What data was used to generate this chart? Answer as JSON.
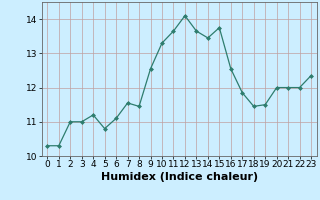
{
  "x": [
    0,
    1,
    2,
    3,
    4,
    5,
    6,
    7,
    8,
    9,
    10,
    11,
    12,
    13,
    14,
    15,
    16,
    17,
    18,
    19,
    20,
    21,
    22,
    23
  ],
  "y": [
    10.3,
    10.3,
    11.0,
    11.0,
    11.2,
    10.8,
    11.1,
    11.55,
    11.45,
    12.55,
    13.3,
    13.65,
    14.1,
    13.65,
    13.45,
    13.75,
    12.55,
    11.85,
    11.45,
    11.5,
    12.0,
    12.0,
    12.0,
    12.35
  ],
  "line_color": "#2e7d6e",
  "marker": "D",
  "marker_size": 2,
  "bg_color": "#cceeff",
  "grid_color": "#c0a0a0",
  "xlabel": "Humidex (Indice chaleur)",
  "xlim": [
    -0.5,
    23.5
  ],
  "ylim": [
    10.0,
    14.5
  ],
  "yticks": [
    10,
    11,
    12,
    13,
    14
  ],
  "xticks": [
    0,
    1,
    2,
    3,
    4,
    5,
    6,
    7,
    8,
    9,
    10,
    11,
    12,
    13,
    14,
    15,
    16,
    17,
    18,
    19,
    20,
    21,
    22,
    23
  ],
  "tick_fontsize": 6.5,
  "xlabel_fontsize": 8
}
